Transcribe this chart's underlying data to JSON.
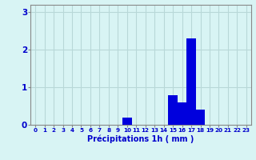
{
  "hours": [
    0,
    1,
    2,
    3,
    4,
    5,
    6,
    7,
    8,
    9,
    10,
    11,
    12,
    13,
    14,
    15,
    16,
    17,
    18,
    19,
    20,
    21,
    22,
    23
  ],
  "values": [
    0,
    0,
    0,
    0,
    0,
    0,
    0,
    0,
    0,
    0,
    0.2,
    0,
    0,
    0,
    0,
    0.8,
    0.6,
    2.3,
    0.4,
    0,
    0,
    0,
    0,
    0
  ],
  "bar_color": "#0000dd",
  "bg_color": "#d8f4f4",
  "grid_color": "#b8d8d8",
  "xlabel": "Précipitations 1h ( mm )",
  "xlabel_color": "#0000cc",
  "tick_color": "#0000cc",
  "ylim": [
    0,
    3.2
  ],
  "yticks": [
    0,
    1,
    2,
    3
  ],
  "bar_width": 1.0
}
